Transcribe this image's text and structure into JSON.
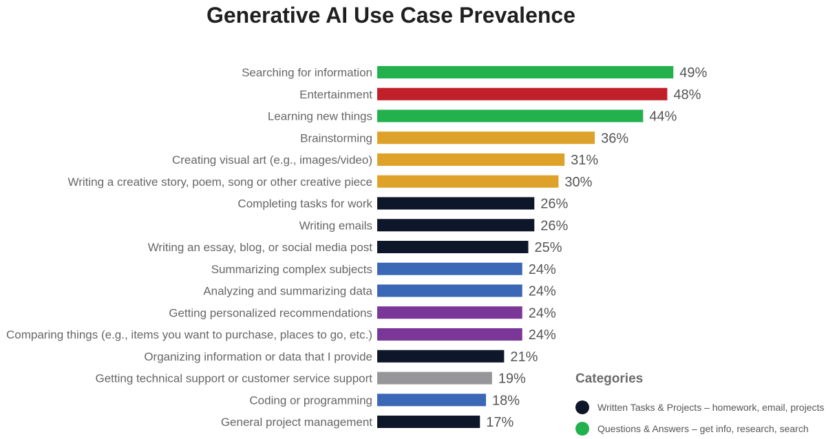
{
  "chart_data": {
    "type": "bar",
    "orientation": "horizontal",
    "title": "Generative AI Use Case Prevalence",
    "xlabel": "",
    "ylabel": "",
    "xlim": [
      0,
      52
    ],
    "grid": false,
    "value_suffix": "%",
    "categories": [
      "Searching for information",
      "Entertainment",
      "Learning new things",
      "Brainstorming",
      "Creating visual art (e.g., images/video)",
      "Writing a creative story, poem, song or other creative piece",
      "Completing tasks for work",
      "Writing emails",
      "Writing an essay, blog, or social media post",
      "Summarizing complex subjects",
      "Analyzing and summarizing data",
      "Getting personalized recommendations",
      "Comparing things (e.g., items you want to purchase, places to go, etc.)",
      "Organizing information or data that I provide",
      "Getting technical support or customer service support",
      "Coding or programming",
      "General project management"
    ],
    "values": [
      49,
      48,
      44,
      36,
      31,
      30,
      26,
      26,
      25,
      24,
      24,
      24,
      24,
      21,
      19,
      18,
      17
    ],
    "value_labels": [
      "49%",
      "48%",
      "44%",
      "36%",
      "31%",
      "30%",
      "26%",
      "26%",
      "25%",
      "24%",
      "24%",
      "24%",
      "24%",
      "21%",
      "19%",
      "18%",
      "17%"
    ],
    "bar_colors": [
      "#22b14c",
      "#c1202a",
      "#22b14c",
      "#dea22a",
      "#dea22a",
      "#dea22a",
      "#0e1629",
      "#0e1629",
      "#0e1629",
      "#3a67b6",
      "#3a67b6",
      "#7b3797",
      "#7b3797",
      "#0e1629",
      "#96969a",
      "#3a67b6",
      "#0e1629"
    ],
    "legend": {
      "title": "Categories",
      "placement": "bottom-right",
      "items": [
        {
          "label": "Written Tasks & Projects – homework, email, projects",
          "color": "#0e1629"
        },
        {
          "label": "Questions & Answers – get info, research, search",
          "color": "#22b14c"
        }
      ]
    }
  }
}
